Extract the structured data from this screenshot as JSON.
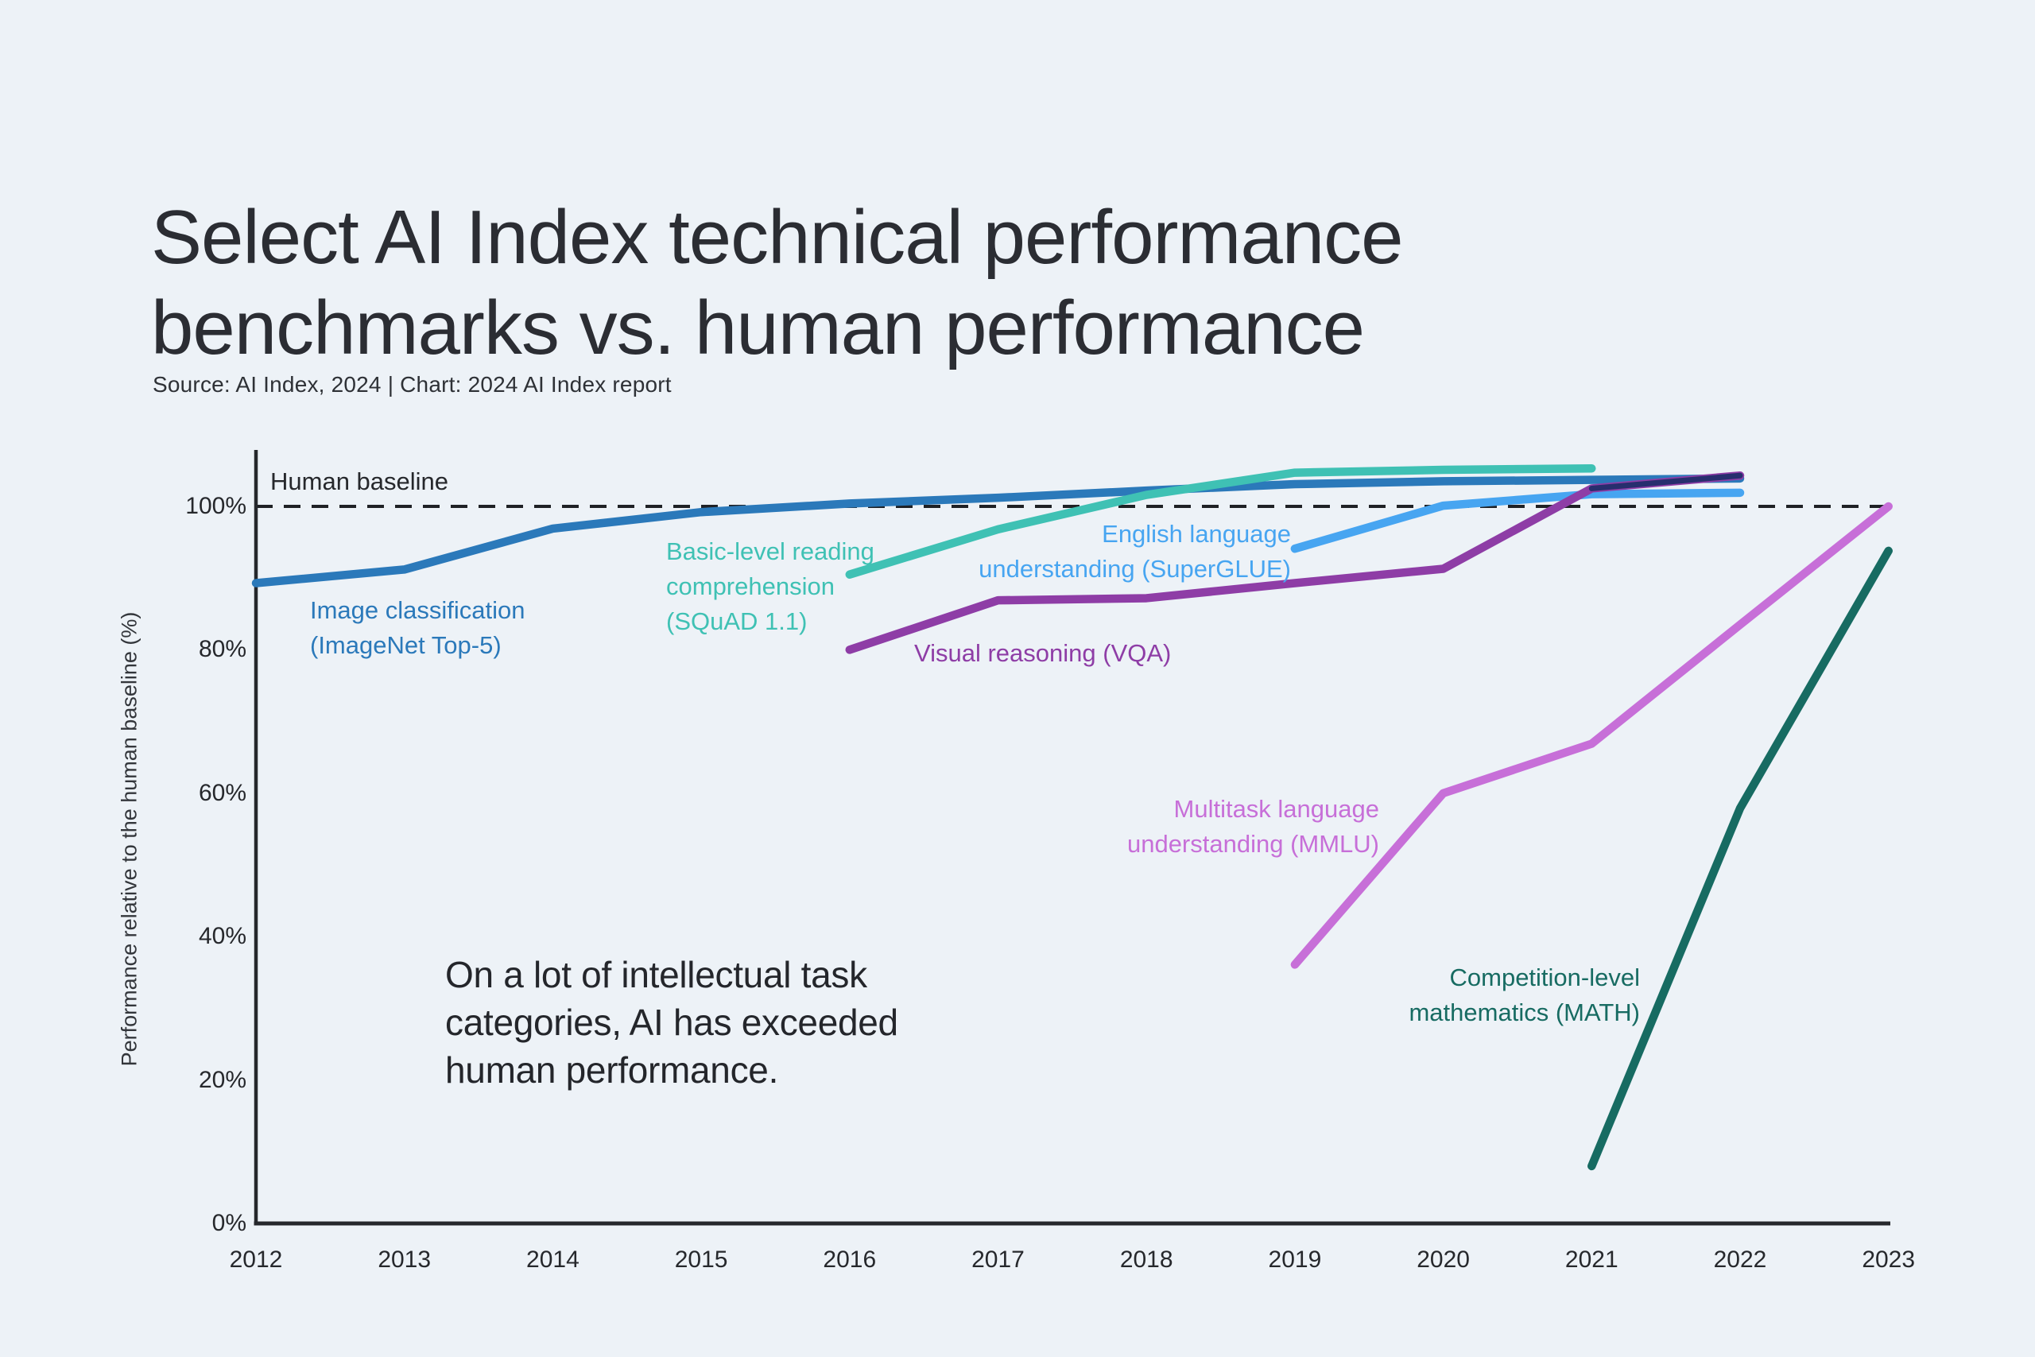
{
  "page": {
    "background": "#edf2f7"
  },
  "header": {
    "title": "Select AI Index technical performance benchmarks vs. human performance",
    "source": "Source: AI Index, 2024 | Chart: 2024 AI Index report"
  },
  "annotation": {
    "text": "On a lot of intellectual task categories, AI has exceeded human performance."
  },
  "chart_data": {
    "type": "line",
    "title": "Select AI Index technical performance benchmarks vs. human performance",
    "xlabel": "",
    "ylabel": "Performance relative to the human baseline (%)",
    "baseline_label": "Human baseline",
    "baseline_value": 100,
    "baseline_style": "dashed",
    "grid": false,
    "legend_position": "inline-labels",
    "x_range": [
      2012,
      2023
    ],
    "ylim": [
      0,
      107
    ],
    "x_ticks": [
      2012,
      2013,
      2014,
      2015,
      2016,
      2017,
      2018,
      2019,
      2020,
      2021,
      2022,
      2023
    ],
    "y_tick_values": [
      0,
      20,
      40,
      60,
      80,
      100
    ],
    "y_tick_labels": [
      "0%",
      "20%",
      "40%",
      "60%",
      "80%",
      "100%"
    ],
    "axis_color": "#26282c",
    "baseline_color": "#1f2125",
    "series": [
      {
        "name": "Image classification (ImageNet Top-5)",
        "label_lines": "Image classification\n(ImageNet Top-5)",
        "color": "#2b79ba",
        "start_year": 2012,
        "values": [
          89.3,
          91.2,
          96.9,
          99.2,
          100.4,
          101.2,
          102.2,
          103.1,
          103.5,
          103.7,
          103.9
        ]
      },
      {
        "name": "Basic-level reading comprehension (SQuAD 1.1)",
        "label_lines": "Basic-level reading\ncomprehension\n(SQuAD 1.1)",
        "color": "#3fc1b4",
        "start_year": 2016,
        "values": [
          90.5,
          96.8,
          101.6,
          104.7,
          105.1,
          105.3
        ]
      },
      {
        "name": "English language understanding (SuperGLUE)",
        "label_lines": "English language\nunderstanding (SuperGLUE)",
        "color": "#47a5f1",
        "start_year": 2019,
        "values": [
          94.1,
          100.1,
          101.7,
          101.9
        ]
      },
      {
        "name": "Visual reasoning (VQA)",
        "label_lines": "Visual reasoning (VQA)",
        "color": "#8e3da6",
        "start_year": 2016,
        "values": [
          80.0,
          86.9,
          87.2,
          89.3,
          91.3,
          102.5,
          104.3
        ]
      },
      {
        "name": "Multitask language understanding (MMLU)",
        "label_lines": "Multitask language\nunderstanding (MMLU)",
        "color": "#c76fd8",
        "start_year": 2019,
        "values": [
          36.1,
          60.0,
          66.9,
          83.5,
          100.0
        ]
      },
      {
        "name": "Competition-level mathematics (MATH)",
        "label_lines": "Competition-level\nmathematics (MATH)",
        "color": "#176b62",
        "start_year": 2021,
        "values": [
          8.0,
          57.9,
          93.8
        ]
      }
    ],
    "overlap_segment": {
      "note": "VQA line overlaps the Image classification line from 2021 to 2022, rendering dark navy",
      "series": "Visual reasoning (VQA)",
      "from_year": 2021,
      "to_year": 2022,
      "color": "#272e6e"
    }
  }
}
